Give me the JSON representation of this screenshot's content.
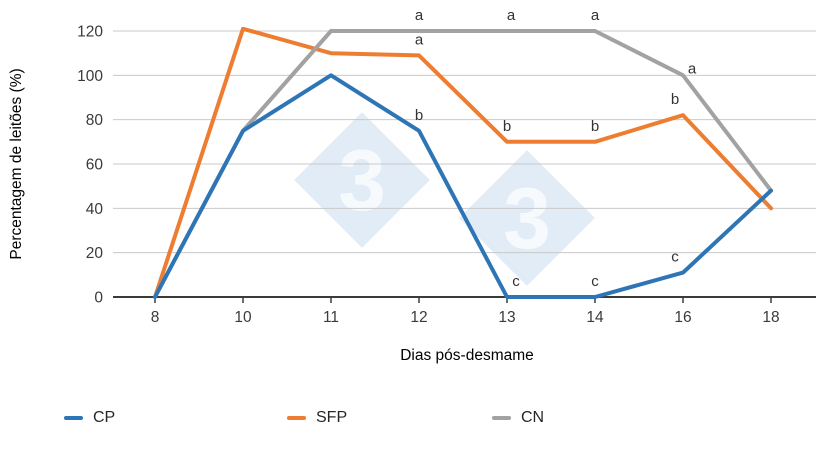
{
  "chart_data": {
    "type": "line",
    "title": "",
    "xlabel": "Dias pós-desmame",
    "ylabel": "Percentagem de leitões (%)",
    "categories": [
      "8",
      "10",
      "11",
      "12",
      "13",
      "14",
      "16",
      "18"
    ],
    "ylim": [
      0,
      120
    ],
    "ytick_interval": 20,
    "grid": "horizontal-only",
    "legend_position": "bottom",
    "series": [
      {
        "name": "CP",
        "color": "#2E75B6",
        "z": 3,
        "values": [
          0,
          75,
          100,
          75,
          0,
          0,
          11,
          48
        ]
      },
      {
        "name": "SFP",
        "color": "#ED7D31",
        "z": 1,
        "values": [
          0,
          121,
          110,
          109,
          70,
          70,
          82,
          40
        ]
      },
      {
        "name": "CN",
        "color": "#A2A2A2",
        "z": 2,
        "values": [
          0,
          75,
          120,
          120,
          120,
          120,
          100,
          48
        ]
      }
    ],
    "annotations": [
      {
        "series": "CN",
        "x": "12",
        "label": "a"
      },
      {
        "series": "CN",
        "x": "13",
        "label": "a",
        "dx": 4
      },
      {
        "series": "CN",
        "x": "14",
        "label": "a"
      },
      {
        "series": "CN",
        "x": "16",
        "label": "a",
        "dx": 9,
        "dy": 9
      },
      {
        "series": "SFP",
        "x": "12",
        "label": "a"
      },
      {
        "series": "SFP",
        "x": "13",
        "label": "b"
      },
      {
        "series": "SFP",
        "x": "14",
        "label": "b"
      },
      {
        "series": "SFP",
        "x": "16",
        "label": "b",
        "dx": -8
      },
      {
        "series": "CP",
        "x": "12",
        "label": "b"
      },
      {
        "series": "CP",
        "x": "13",
        "label": "c",
        "dx": 9
      },
      {
        "series": "CP",
        "x": "14",
        "label": "c"
      },
      {
        "series": "CP",
        "x": "16",
        "label": "c",
        "dx": -8
      }
    ],
    "watermark": {
      "glyph": "3",
      "count": 2
    }
  },
  "styles": {
    "axis_color": "#3a3a3a",
    "grid_color": "#c9c9c9",
    "text_color": "#3a3a3a",
    "annotation_color": "#333333",
    "watermark_fill": "#e2ecf6",
    "watermark_glyph_color": "#f6fafd"
  }
}
